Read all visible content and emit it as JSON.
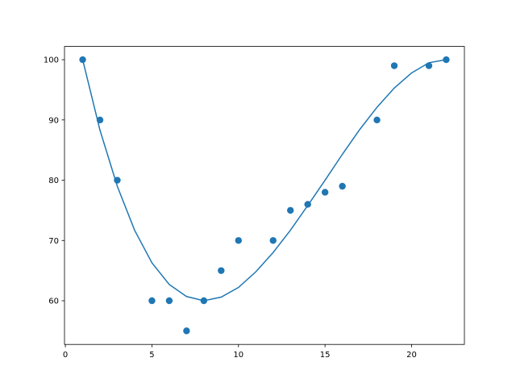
{
  "chart_data": {
    "type": "scatter",
    "xlim": [
      -0.05,
      23.05
    ],
    "ylim": [
      52.75,
      102.2
    ],
    "xticks": [
      0,
      5,
      10,
      15,
      20
    ],
    "yticks": [
      60,
      70,
      80,
      90,
      100
    ],
    "series": [
      {
        "type": "scatter",
        "color": "#1f77b4",
        "x": [
          1,
          2,
          3,
          5,
          6,
          7,
          8,
          9,
          10,
          12,
          13,
          14,
          15,
          16,
          18,
          19,
          21,
          22
        ],
        "values": [
          100,
          90,
          80,
          60,
          60,
          55,
          60,
          65,
          70,
          70,
          75,
          76,
          78,
          79,
          90,
          99,
          99,
          100
        ]
      },
      {
        "type": "line",
        "color": "#1f77b4",
        "x": [
          1,
          2,
          3,
          4,
          5,
          6,
          7,
          8,
          9,
          10,
          11,
          12,
          13,
          14,
          15,
          16,
          17,
          18,
          19,
          20,
          21,
          22
        ],
        "values": [
          100.0,
          88.3,
          79.0,
          71.7,
          66.3,
          62.7,
          60.7,
          60.0,
          60.6,
          62.2,
          64.8,
          68.0,
          71.7,
          75.8,
          80.0,
          84.3,
          88.4,
          92.1,
          95.3,
          97.8,
          99.5,
          100.0
        ]
      }
    ]
  }
}
